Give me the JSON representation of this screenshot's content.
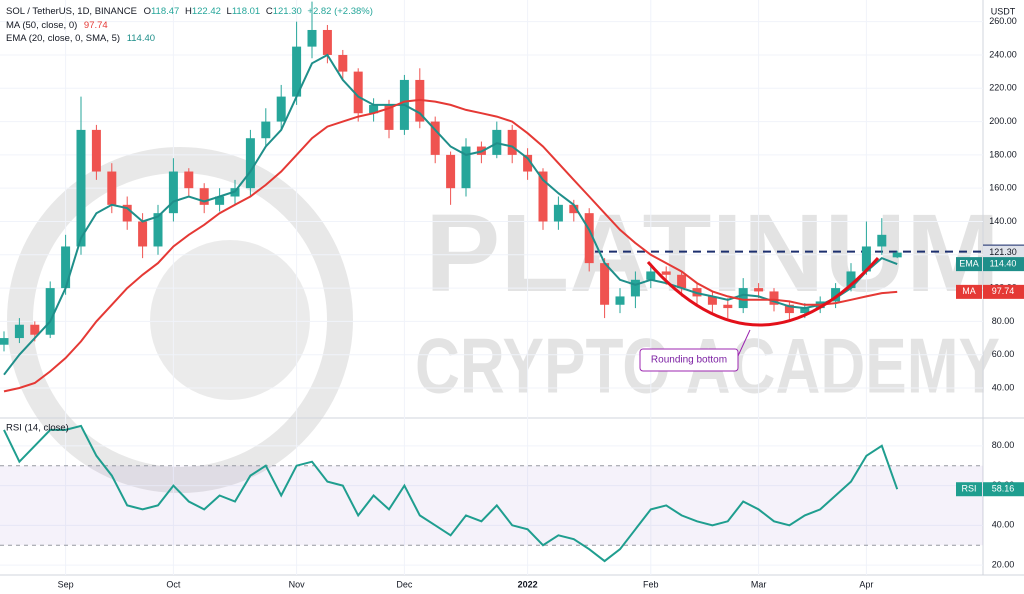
{
  "header": {
    "symbol": "SOL / TetherUS, 1D, BINANCE",
    "o_label": "O",
    "h_label": "H",
    "l_label": "L",
    "c_label": "C",
    "change": "+2.82 (+2.38%)",
    "ma_label": "MA (50, close, 0)",
    "ema_label": "EMA (20, close, 0, SMA, 5)",
    "currency": "USDT"
  },
  "watermark": [
    "PLATINUM",
    "CRYPTO ACADEMY"
  ],
  "chart_data": [
    {
      "type": "candlestick",
      "categories": [
        null,
        null,
        null,
        null,
        "Sep",
        null,
        null,
        null,
        null,
        null,
        null,
        "Oct",
        null,
        null,
        null,
        null,
        null,
        null,
        null,
        "Nov",
        null,
        null,
        null,
        null,
        null,
        null,
        "Dec",
        null,
        null,
        null,
        null,
        null,
        null,
        null,
        "2022",
        null,
        null,
        null,
        null,
        null,
        null,
        null,
        "Feb",
        null,
        null,
        null,
        null,
        null,
        null,
        "Mar",
        null,
        null,
        null,
        null,
        null,
        null,
        "Apr",
        null,
        null
      ],
      "open": [
        66,
        70,
        78,
        72,
        100,
        125,
        195,
        170,
        150,
        140,
        125,
        145,
        170,
        160,
        150,
        155,
        160,
        190,
        200,
        215,
        245,
        255,
        240,
        230,
        205,
        210,
        195,
        225,
        200,
        180,
        160,
        185,
        180,
        195,
        180,
        170,
        140,
        150,
        145,
        115,
        90,
        95,
        105,
        110,
        108,
        100,
        95,
        90,
        88,
        100,
        98,
        90,
        85,
        88,
        92,
        100,
        110,
        125,
        118.47
      ],
      "high": [
        74,
        82,
        80,
        104,
        132,
        215,
        198,
        175,
        155,
        145,
        150,
        178,
        172,
        163,
        160,
        165,
        195,
        208,
        222,
        260,
        272,
        258,
        243,
        232,
        214,
        213,
        228,
        232,
        203,
        182,
        190,
        188,
        200,
        198,
        184,
        172,
        155,
        153,
        148,
        118,
        100,
        110,
        115,
        113,
        110,
        103,
        98,
        94,
        106,
        103,
        100,
        92,
        91,
        95,
        103,
        115,
        140,
        142,
        122.42
      ],
      "low": [
        62,
        67,
        68,
        70,
        96,
        120,
        165,
        145,
        135,
        118,
        120,
        140,
        155,
        145,
        146,
        150,
        155,
        185,
        195,
        210,
        238,
        235,
        225,
        200,
        200,
        190,
        192,
        196,
        175,
        150,
        155,
        175,
        178,
        175,
        165,
        135,
        135,
        140,
        110,
        82,
        85,
        88,
        100,
        102,
        95,
        90,
        85,
        82,
        85,
        94,
        86,
        80,
        82,
        85,
        88,
        98,
        108,
        120,
        118.01
      ],
      "close": [
        70,
        78,
        72,
        100,
        125,
        195,
        170,
        150,
        140,
        125,
        145,
        170,
        160,
        150,
        155,
        160,
        190,
        200,
        215,
        245,
        255,
        240,
        230,
        205,
        210,
        195,
        225,
        200,
        180,
        160,
        185,
        180,
        195,
        180,
        170,
        140,
        150,
        145,
        115,
        90,
        95,
        105,
        110,
        108,
        100,
        95,
        90,
        88,
        100,
        98,
        90,
        85,
        88,
        92,
        100,
        110,
        125,
        132,
        121.3
      ],
      "close_labels": [
        null,
        null,
        null,
        null,
        null,
        null,
        null,
        null,
        null,
        null,
        null,
        null,
        null,
        null,
        null,
        null,
        null,
        null,
        null,
        null,
        null,
        null,
        null,
        null,
        null,
        null,
        null,
        null,
        null,
        null,
        null,
        null,
        null,
        null,
        null,
        null,
        null,
        null,
        null,
        null,
        null,
        null,
        null,
        null,
        null,
        null,
        null,
        null,
        null,
        null,
        null,
        null,
        null,
        null,
        null,
        null,
        null,
        null,
        "121.30"
      ],
      "up_color": "#26a69a",
      "down_color": "#ef5350",
      "series": [
        {
          "name": "EMA",
          "color": "#1f8f8a",
          "values": [
            48,
            60,
            70,
            80,
            100,
            130,
            145,
            150,
            148,
            140,
            143,
            152,
            155,
            152,
            155,
            158,
            170,
            185,
            195,
            215,
            235,
            240,
            225,
            215,
            210,
            210,
            210,
            205,
            195,
            185,
            180,
            182,
            187,
            185,
            178,
            165,
            157,
            150,
            135,
            115,
            105,
            102,
            105,
            103,
            100,
            97,
            95,
            93,
            96,
            95,
            92,
            89,
            88,
            90,
            94,
            100,
            110,
            118,
            114.4
          ],
          "value_labels": [
            null,
            null,
            null,
            null,
            null,
            null,
            null,
            null,
            null,
            null,
            null,
            null,
            null,
            null,
            null,
            null,
            null,
            null,
            null,
            null,
            null,
            null,
            null,
            null,
            null,
            null,
            null,
            null,
            null,
            null,
            null,
            null,
            null,
            null,
            null,
            null,
            null,
            null,
            null,
            null,
            null,
            null,
            null,
            null,
            null,
            null,
            null,
            null,
            null,
            null,
            null,
            null,
            null,
            null,
            null,
            null,
            null,
            null,
            "114.40"
          ]
        },
        {
          "name": "MA",
          "color": "#e53935",
          "values": [
            38,
            40,
            43,
            50,
            58,
            68,
            80,
            90,
            100,
            108,
            115,
            125,
            132,
            138,
            145,
            150,
            155,
            162,
            170,
            180,
            190,
            197,
            200,
            203,
            205,
            208,
            212,
            213,
            212,
            210,
            207,
            205,
            203,
            200,
            193,
            185,
            175,
            165,
            155,
            145,
            135,
            127,
            120,
            115,
            110,
            103,
            98,
            95,
            93,
            93,
            93,
            92,
            90,
            90,
            91,
            93,
            95,
            97,
            97.74
          ]
        }
      ],
      "level": 121.93,
      "level_color": "#1c2f6e",
      "annotation": "Rounding bottom",
      "ylim": [
        22,
        273
      ],
      "yticks": [
        {
          "value": 40,
          "label": "40.00"
        },
        {
          "value": 60,
          "label": "60.00"
        },
        {
          "value": 80,
          "label": "80.00"
        },
        {
          "value": 100,
          "label": "100.00"
        },
        {
          "value": 120,
          "label": "120.00"
        },
        {
          "value": 140,
          "label": "140.00"
        },
        {
          "value": 160,
          "label": "160.00"
        },
        {
          "value": 180,
          "label": "180.00"
        },
        {
          "value": 200,
          "label": "200.00"
        },
        {
          "value": 220,
          "label": "220.00"
        },
        {
          "value": 240,
          "label": "240.00"
        },
        {
          "value": 260,
          "label": "260.00"
        }
      ],
      "grid": true
    },
    {
      "type": "line",
      "title": "RSI (14, close)",
      "series": [
        {
          "name": "RSI",
          "color": "#1f9e8f",
          "values": [
            88,
            72,
            80,
            88,
            88,
            90,
            75,
            65,
            50,
            48,
            50,
            60,
            52,
            48,
            55,
            52,
            65,
            70,
            55,
            70,
            72,
            62,
            60,
            45,
            55,
            48,
            60,
            45,
            40,
            35,
            45,
            42,
            50,
            40,
            38,
            30,
            35,
            33,
            28,
            22,
            28,
            38,
            48,
            50,
            45,
            42,
            40,
            42,
            52,
            48,
            42,
            40,
            45,
            48,
            55,
            62,
            75,
            80,
            58.16
          ]
        }
      ],
      "bands": [
        30,
        70
      ],
      "ylim": [
        15,
        94
      ],
      "yticks": [
        {
          "value": 20,
          "label": "20.00"
        },
        {
          "value": 40,
          "label": "40.00"
        },
        {
          "value": 60,
          "label": "60.00"
        },
        {
          "value": 80,
          "label": "80.00"
        }
      ],
      "grid": true
    }
  ]
}
